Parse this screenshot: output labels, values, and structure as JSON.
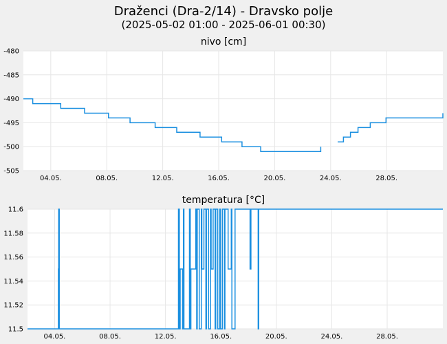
{
  "header": {
    "title": "Draženci (Dra-2/14) - Dravsko polje",
    "subtitle": "(2025-05-02 01:00 - 2025-06-01 00:30)"
  },
  "colors": {
    "background": "#f0f0f0",
    "plot_background": "#ffffff",
    "grid": "#e6e6e6",
    "series": "#1a8fe0"
  },
  "chart_data": [
    {
      "type": "line",
      "title": "nivo [cm]",
      "xlabel": "",
      "ylabel": "",
      "grid": true,
      "xlim": [
        "2025-05-02 01:00",
        "2025-06-01 00:30"
      ],
      "ylim": [
        -505,
        -480
      ],
      "yticks": [
        "-480",
        "-485",
        "-490",
        "-495",
        "-500",
        "-505"
      ],
      "xticks": [
        "04.05.",
        "08.05.",
        "12.05.",
        "16.05.",
        "20.05.",
        "24.05.",
        "28.05."
      ],
      "series": [
        {
          "x": [
            "2025-05-02 01:00",
            "2025-05-02 17:00",
            "2025-05-04 17:00",
            "2025-05-06 10:00",
            "2025-05-08 03:00",
            "2025-05-09 16:00",
            "2025-05-11 11:00",
            "2025-05-13 00:00",
            "2025-05-14 16:00",
            "2025-05-16 05:00",
            "2025-05-17 16:00",
            "2025-05-19 00:00",
            "2025-05-23 07:00",
            "2025-05-24 01:00",
            "2025-05-24 12:00",
            "2025-05-24 22:00",
            "2025-05-25 10:00",
            "2025-05-25 23:00",
            "2025-05-26 20:00",
            "2025-05-27 23:00",
            "2025-06-01 00:30"
          ],
          "values": [
            -490,
            -491,
            -492,
            -493,
            -494,
            -495,
            -496,
            -497,
            -498,
            -499,
            -500,
            -501,
            -500,
            null,
            -499,
            -498,
            -497,
            -496,
            -495,
            -494,
            -493
          ]
        }
      ]
    },
    {
      "type": "line",
      "title": "temperatura [°C]",
      "xlabel": "",
      "ylabel": "",
      "grid": true,
      "xlim": [
        "2025-05-02 01:00",
        "2025-06-01 00:30"
      ],
      "ylim": [
        11.5,
        11.6
      ],
      "yticks": [
        "11.6",
        "11.58",
        "11.56",
        "11.54",
        "11.52",
        "11.5"
      ],
      "xticks": [
        "04.05.",
        "08.05.",
        "12.05.",
        "16.05.",
        "20.05.",
        "24.05.",
        "28.05."
      ],
      "series": [
        {
          "x": [
            "2025-05-02 01:00",
            "2025-05-04 06:00",
            "2025-05-04 06:30",
            "2025-05-04 07:00",
            "2025-05-04 07:30",
            "2025-05-04 08:00",
            "2025-05-12 22:00",
            "2025-05-12 22:30",
            "2025-05-12 23:30",
            "2025-05-13 00:00",
            "2025-05-13 01:00",
            "2025-05-13 01:30",
            "2025-05-13 05:00",
            "2025-05-13 05:30",
            "2025-05-13 06:00",
            "2025-05-13 07:00",
            "2025-05-13 07:30",
            "2025-05-13 08:00",
            "2025-05-13 17:00",
            "2025-05-13 17:30",
            "2025-05-13 18:00",
            "2025-05-13 19:00",
            "2025-05-13 19:30",
            "2025-05-13 20:00",
            "2025-05-14 04:00",
            "2025-05-14 04:30",
            "2025-05-14 05:00",
            "2025-05-14 06:00",
            "2025-05-14 06:30",
            "2025-05-14 07:00",
            "2025-05-14 10:00",
            "2025-05-14 10:30",
            "2025-05-14 11:00",
            "2025-05-14 14:00",
            "2025-05-14 14:30",
            "2025-05-14 15:00",
            "2025-05-14 18:00",
            "2025-05-14 18:30",
            "2025-05-14 19:00",
            "2025-05-14 22:00",
            "2025-05-14 22:30",
            "2025-05-14 23:00",
            "2025-05-15 02:00",
            "2025-05-15 02:30",
            "2025-05-15 03:00",
            "2025-05-15 06:00",
            "2025-05-15 06:30",
            "2025-05-15 07:00",
            "2025-05-15 10:00",
            "2025-05-15 10:30",
            "2025-05-15 11:00",
            "2025-05-15 14:00",
            "2025-05-15 14:30",
            "2025-05-15 15:00",
            "2025-05-15 18:00",
            "2025-05-15 18:30",
            "2025-05-15 19:00",
            "2025-05-15 22:00",
            "2025-05-15 22:30",
            "2025-05-15 23:00",
            "2025-05-16 02:00",
            "2025-05-16 02:30",
            "2025-05-16 03:00",
            "2025-05-16 06:00",
            "2025-05-16 06:30",
            "2025-05-16 07:00",
            "2025-05-16 12:00",
            "2025-05-16 12:30",
            "2025-05-16 13:00",
            "2025-05-16 18:00",
            "2025-05-16 18:30",
            "2025-05-16 19:00",
            "2025-05-17 00:00",
            "2025-05-17 00:30",
            "2025-05-17 01:00",
            "2025-05-17 06:00",
            "2025-05-17 06:30",
            "2025-05-17 07:00",
            "2025-05-18 02:00",
            "2025-05-18 02:30",
            "2025-05-18 03:00",
            "2025-05-18 04:00",
            "2025-05-18 04:30",
            "2025-05-18 05:00",
            "2025-05-18 16:00",
            "2025-05-18 16:30",
            "2025-05-18 17:00",
            "2025-05-18 17:30",
            "2025-05-18 18:00",
            "2025-06-01 00:30"
          ],
          "values": [
            11.5,
            11.5,
            11.55,
            11.6,
            11.6,
            11.5,
            11.5,
            11.6,
            11.6,
            11.5,
            11.5,
            11.55,
            11.55,
            11.5,
            11.5,
            11.6,
            11.6,
            11.5,
            11.5,
            11.6,
            11.6,
            11.5,
            11.5,
            11.55,
            11.55,
            11.6,
            11.6,
            11.5,
            11.5,
            11.6,
            11.6,
            11.5,
            11.5,
            11.6,
            11.6,
            11.55,
            11.55,
            11.6,
            11.6,
            11.5,
            11.5,
            11.6,
            11.6,
            11.5,
            11.5,
            11.6,
            11.6,
            11.55,
            11.55,
            11.6,
            11.6,
            11.5,
            11.5,
            11.6,
            11.6,
            11.5,
            11.5,
            11.6,
            11.6,
            11.5,
            11.5,
            11.6,
            11.6,
            11.5,
            11.5,
            11.6,
            11.6,
            11.55,
            11.55,
            11.6,
            11.6,
            11.5,
            11.5,
            11.6,
            11.6,
            11.6,
            11.6,
            11.6,
            11.6,
            11.55,
            11.55,
            11.6,
            11.6,
            11.6,
            11.6,
            11.5,
            11.5,
            11.6,
            11.6,
            11.6
          ]
        }
      ]
    }
  ]
}
